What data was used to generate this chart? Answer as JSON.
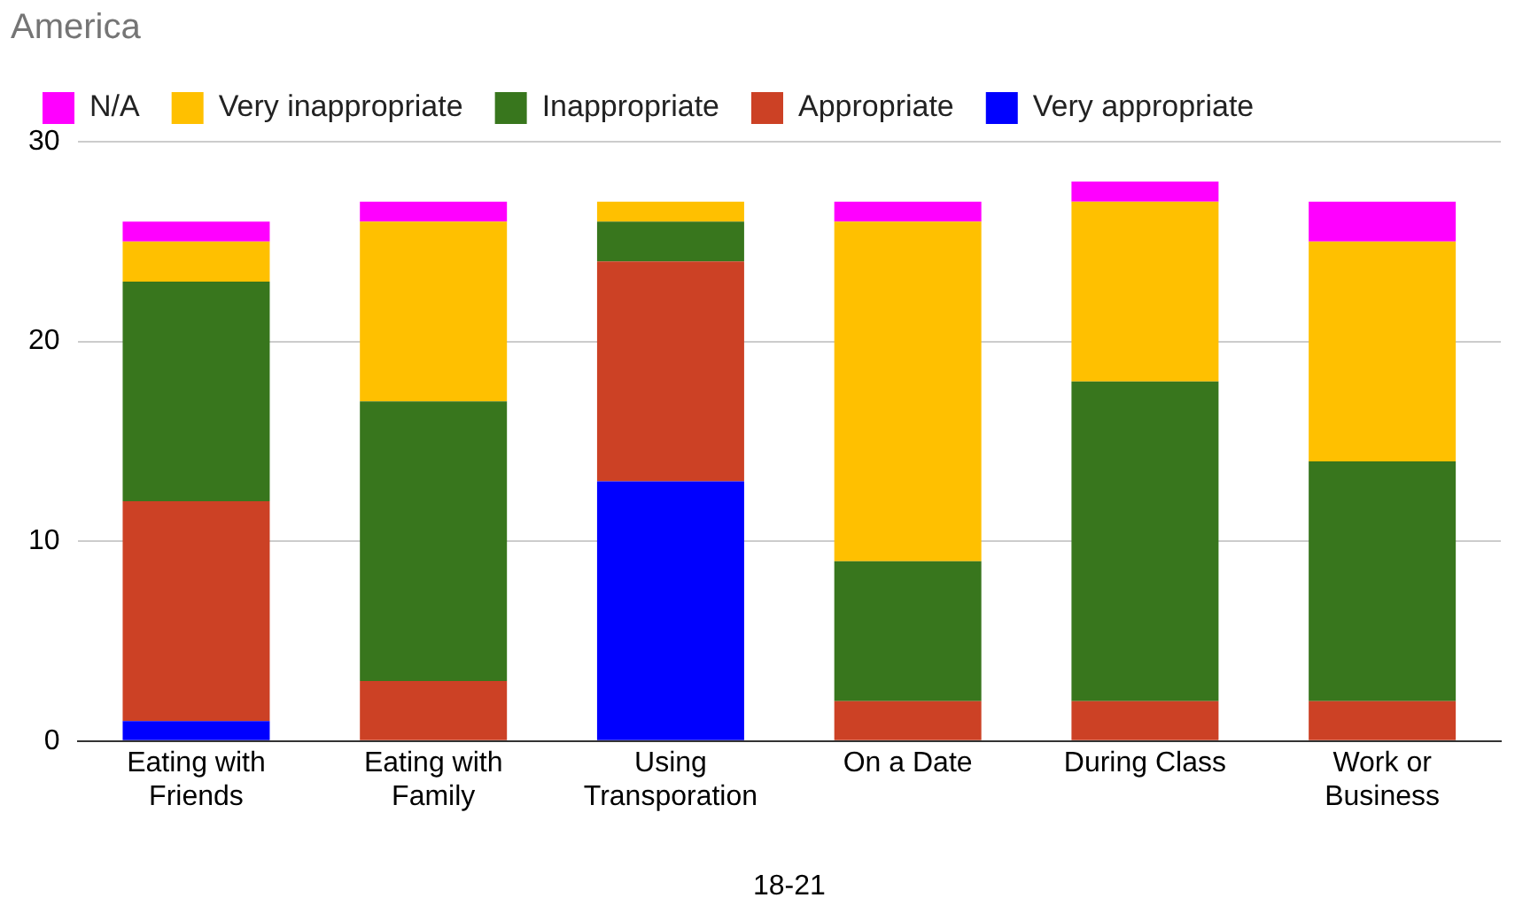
{
  "chart_data": {
    "type": "bar",
    "title": "America",
    "xlabel": "18-21",
    "stacked": true,
    "legend": "top",
    "grid": "y",
    "categories": [
      "Eating with Friends",
      "Eating with Family",
      "Using Transporation",
      "On a Date",
      "During Class",
      "Work or Business"
    ],
    "ylim": [
      0,
      30
    ],
    "yticks": [
      0,
      10,
      20,
      30
    ],
    "series": [
      {
        "name": "Very appropriate",
        "color": "#0000ff",
        "values": [
          1,
          0,
          13,
          0,
          0,
          0
        ]
      },
      {
        "name": "Appropriate",
        "color": "#cc4125",
        "values": [
          11,
          3,
          11,
          2,
          2,
          2
        ]
      },
      {
        "name": "Inappropriate",
        "color": "#38761d",
        "values": [
          11,
          14,
          2,
          7,
          16,
          12
        ]
      },
      {
        "name": "Very inappropriate",
        "color": "#ffc000",
        "values": [
          2,
          9,
          1,
          17,
          9,
          11
        ]
      },
      {
        "name": "N/A",
        "color": "#ff00ff",
        "values": [
          1,
          1,
          0,
          1,
          1,
          2
        ]
      }
    ]
  }
}
